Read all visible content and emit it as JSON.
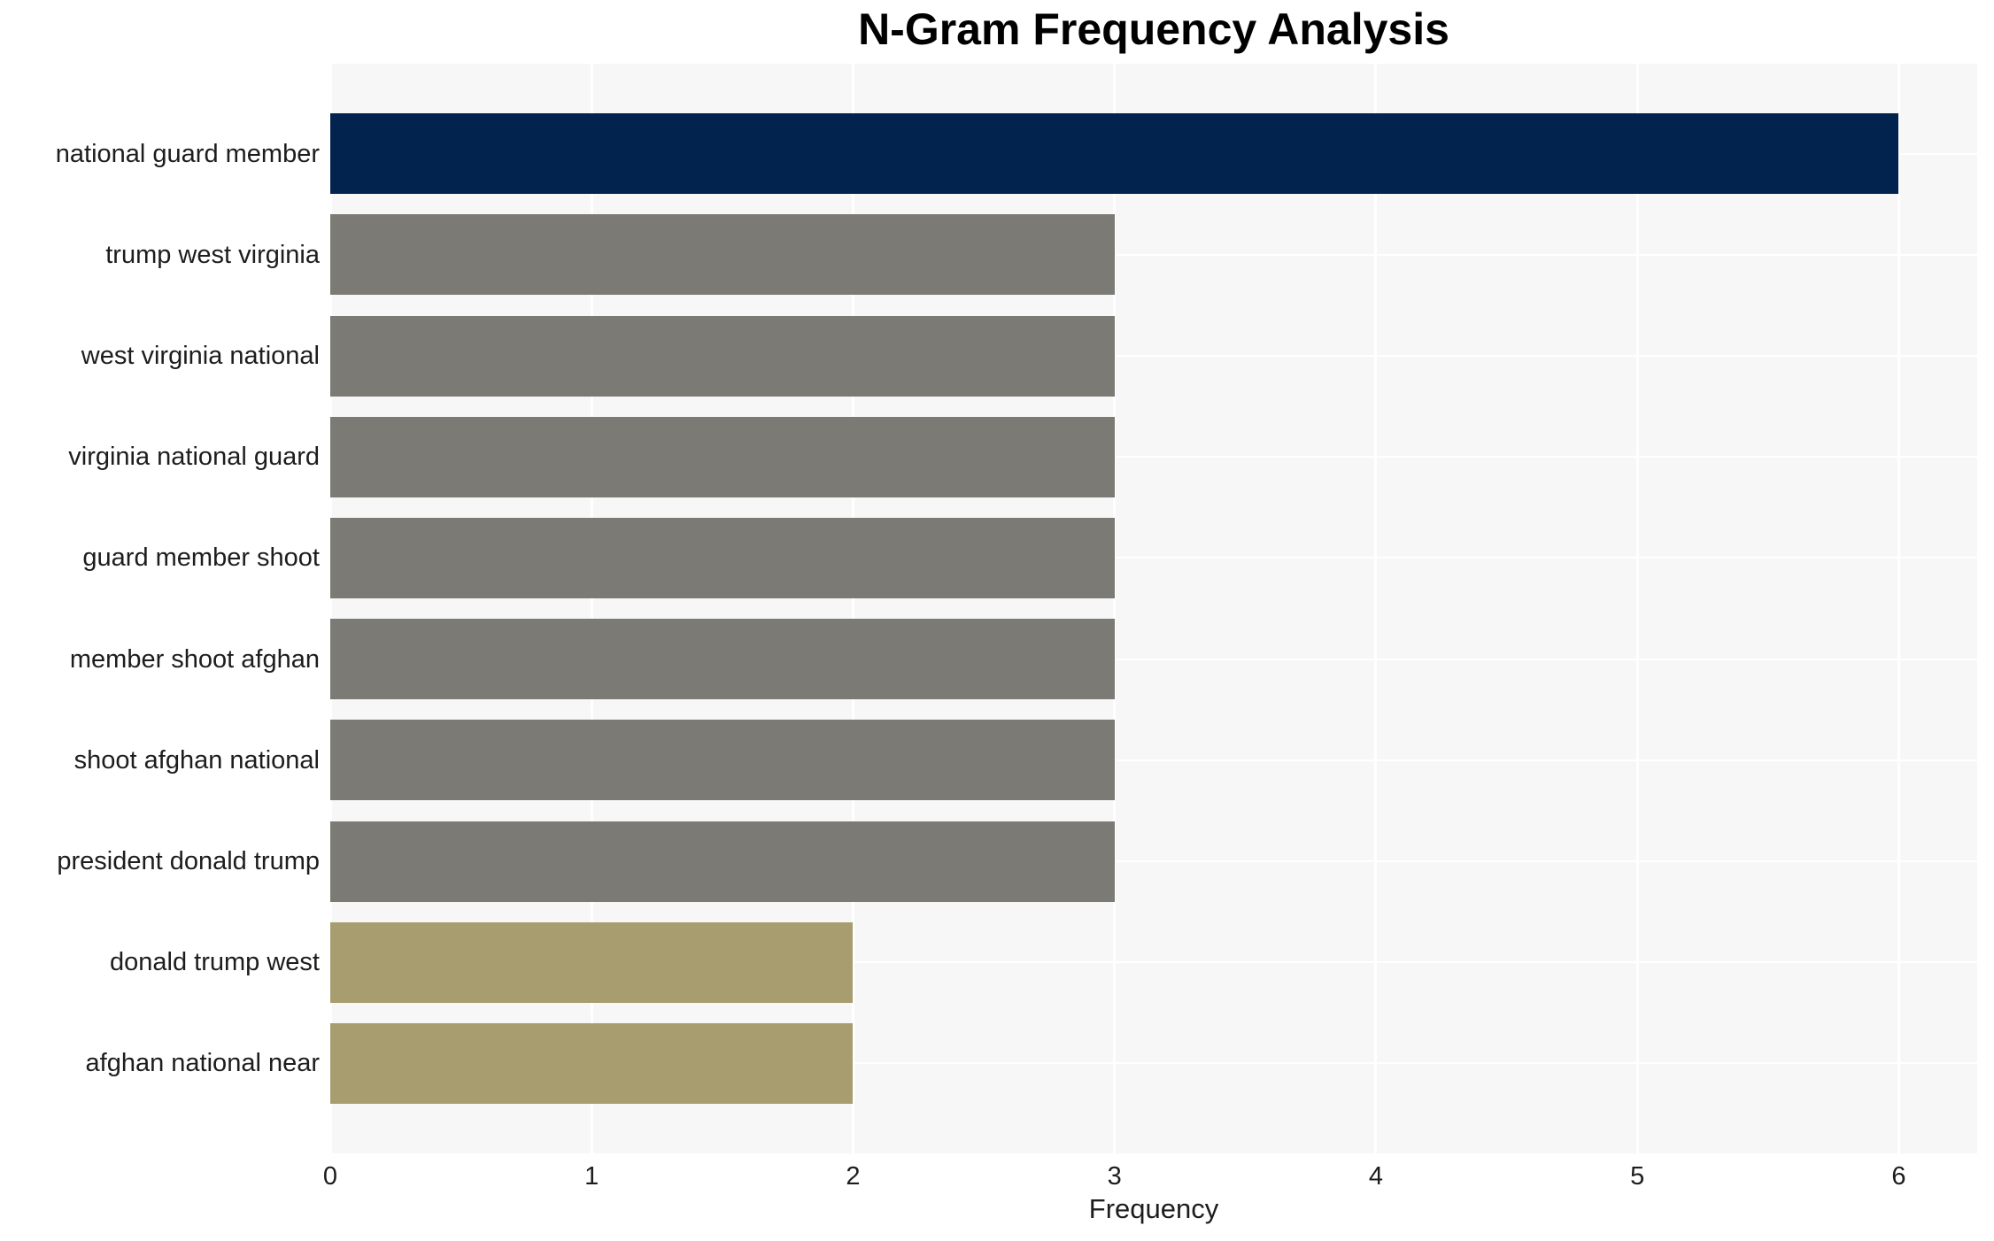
{
  "chart_data": {
    "type": "bar",
    "orientation": "horizontal",
    "title": "N-Gram Frequency Analysis",
    "xlabel": "Frequency",
    "ylabel": "",
    "categories": [
      "national guard member",
      "trump west virginia",
      "west virginia national",
      "virginia national guard",
      "guard member shoot",
      "member shoot afghan",
      "shoot afghan national",
      "president donald trump",
      "donald trump west",
      "afghan national near"
    ],
    "values": [
      6,
      3,
      3,
      3,
      3,
      3,
      3,
      3,
      2,
      2
    ],
    "bar_colors": [
      "#02234e",
      "#7b7a74",
      "#7b7a74",
      "#7b7a74",
      "#7b7a74",
      "#7b7a74",
      "#7b7a74",
      "#7b7a74",
      "#a79d6f",
      "#a79d6f"
    ],
    "xticks": [
      "0",
      "1",
      "2",
      "3",
      "4",
      "5",
      "6"
    ],
    "xlim": [
      0,
      6.3
    ],
    "grid": true,
    "legend": null,
    "colors": {
      "plot_background": "#f7f7f7",
      "grid_line": "#ffffff",
      "title_text": "#000000",
      "axis_text": "#1d1d1d",
      "highest_bar": "#02234e",
      "mid_bar": "#7b7a74",
      "low_bar": "#a79d6f"
    }
  }
}
